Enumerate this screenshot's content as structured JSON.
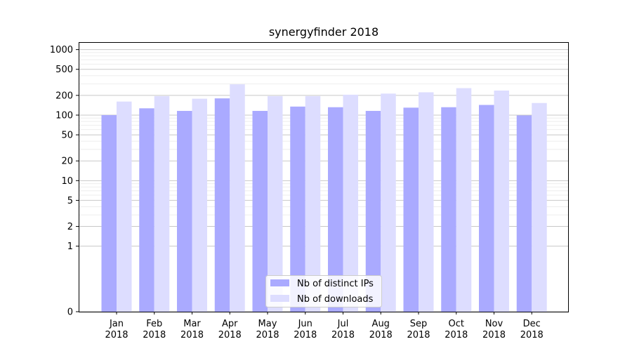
{
  "chart_data": {
    "type": "bar",
    "title": "synergyfinder 2018",
    "xlabel": "",
    "ylabel": "",
    "y_scale": "symlog",
    "ylim": [
      0,
      1300
    ],
    "categories": [
      [
        "Jan",
        "2018"
      ],
      [
        "Feb",
        "2018"
      ],
      [
        "Mar",
        "2018"
      ],
      [
        "Apr",
        "2018"
      ],
      [
        "May",
        "2018"
      ],
      [
        "Jun",
        "2018"
      ],
      [
        "Jul",
        "2018"
      ],
      [
        "Aug",
        "2018"
      ],
      [
        "Sep",
        "2018"
      ],
      [
        "Oct",
        "2018"
      ],
      [
        "Nov",
        "2018"
      ],
      [
        "Dec",
        "2018"
      ]
    ],
    "yticks": [
      0,
      1,
      2,
      5,
      10,
      20,
      50,
      100,
      200,
      500,
      1000
    ],
    "grid": true,
    "legend_position": "bottom-center",
    "series": [
      {
        "name": "Nb of distinct IPs",
        "color": "#aaaaff",
        "values": [
          100,
          127,
          116,
          180,
          116,
          135,
          132,
          116,
          130,
          132,
          143,
          99
        ]
      },
      {
        "name": "Nb of downloads",
        "color": "#ddddff",
        "values": [
          161,
          195,
          178,
          295,
          195,
          195,
          205,
          213,
          223,
          258,
          237,
          153
        ]
      }
    ]
  }
}
